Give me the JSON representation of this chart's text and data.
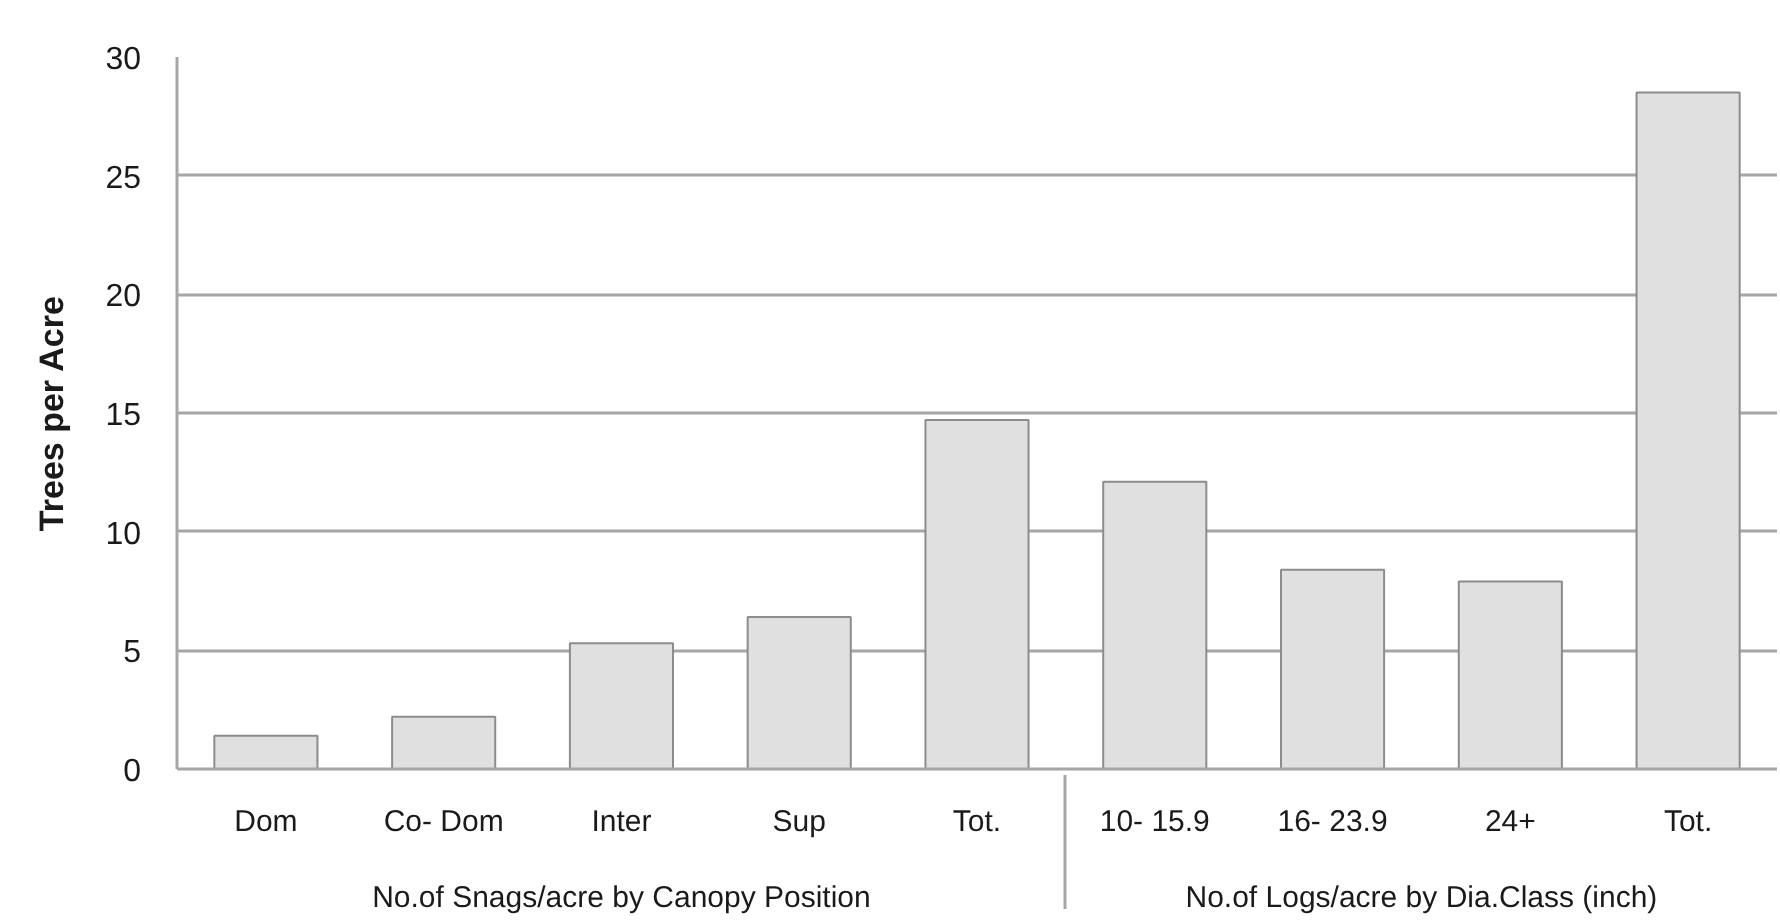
{
  "chart_data": {
    "type": "bar",
    "ylabel": "Trees per Acre",
    "categories": [
      "Dom",
      "Co- Dom",
      "Inter",
      "Sup",
      "Tot.",
      "10- 15.9",
      "16- 23.9",
      "24+",
      "Tot."
    ],
    "values": [
      1.4,
      2.2,
      5.3,
      6.4,
      14.7,
      12.1,
      8.4,
      7.9,
      28.5
    ],
    "color": "#e0e0e0",
    "ylim": [
      0,
      30
    ],
    "yticks": [
      0,
      5,
      10,
      15,
      20,
      25,
      30
    ],
    "grid": "y",
    "annotations": [
      "No.of Snags/acre by Canopy Position",
      "No.of Logs/acre by Dia.Class (inch)"
    ]
  }
}
